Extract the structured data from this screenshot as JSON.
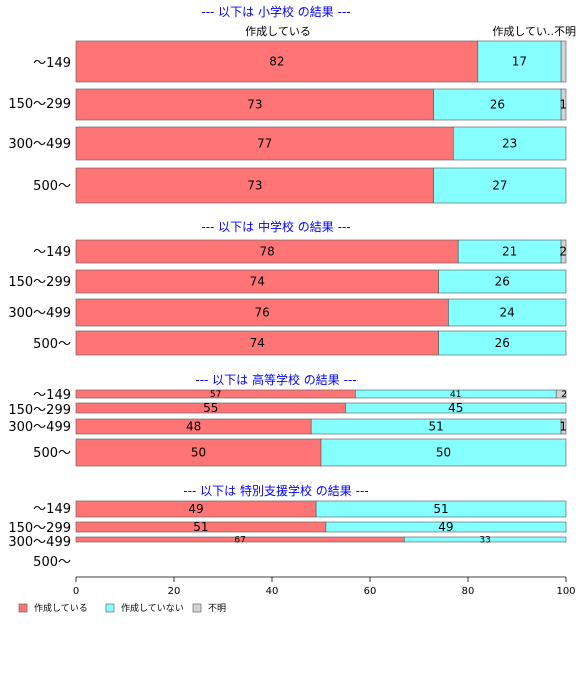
{
  "chart_data": {
    "type": "bar",
    "orientation": "horizontal",
    "stacked": true,
    "xlim": [
      0,
      100
    ],
    "x_ticks": [
      "0",
      "20",
      "40",
      "60",
      "80",
      "100"
    ],
    "colors": {
      "yes": "#ff7575",
      "no": "#85ffff",
      "unknown": "#d3d3d3"
    },
    "legend": {
      "position": "bottom-left",
      "items": [
        {
          "key": "yes",
          "label": "作成している"
        },
        {
          "key": "no",
          "label": "作成していない"
        },
        {
          "key": "unknown",
          "label": "不明"
        }
      ]
    },
    "header_labels": {
      "yes": "作成している",
      "no": "作成してい..不明"
    },
    "sections": [
      {
        "title": "--- 以下は 小学校 の結果 ---",
        "rows": [
          {
            "category": "～149",
            "values": [
              82,
              17,
              1
            ],
            "labels": [
              "82",
              "17",
              ""
            ]
          },
          {
            "category": "150～299",
            "values": [
              73,
              26,
              1
            ],
            "labels": [
              "73",
              "26",
              "1"
            ]
          },
          {
            "category": "300～499",
            "values": [
              77,
              23,
              0
            ],
            "labels": [
              "77",
              "23",
              ""
            ]
          },
          {
            "category": "500～",
            "values": [
              73,
              27,
              0
            ],
            "labels": [
              "73",
              "27",
              ""
            ]
          }
        ]
      },
      {
        "title": "--- 以下は 中学校 の結果 ---",
        "rows": [
          {
            "category": "～149",
            "values": [
              78,
              21,
              2
            ],
            "labels": [
              "78",
              "21",
              "2"
            ]
          },
          {
            "category": "150～299",
            "values": [
              74,
              26,
              0
            ],
            "labels": [
              "74",
              "26",
              ""
            ]
          },
          {
            "category": "300～499",
            "values": [
              76,
              24,
              0
            ],
            "labels": [
              "76",
              "24",
              ""
            ]
          },
          {
            "category": "500～",
            "values": [
              74,
              26,
              0
            ],
            "labels": [
              "74",
              "26",
              ""
            ]
          }
        ]
      },
      {
        "title": "--- 以下は 高等学校 の結果 ---",
        "rows": [
          {
            "category": "～149",
            "values": [
              57,
              41,
              2
            ],
            "labels": [
              "57",
              "41",
              "2"
            ]
          },
          {
            "category": "150～299",
            "values": [
              55,
              45,
              0
            ],
            "labels": [
              "55",
              "45",
              ""
            ]
          },
          {
            "category": "300～499",
            "values": [
              48,
              51,
              1
            ],
            "labels": [
              "48",
              "51",
              "1"
            ]
          },
          {
            "category": "500～",
            "values": [
              50,
              50,
              0
            ],
            "labels": [
              "50",
              "50",
              ""
            ]
          }
        ]
      },
      {
        "title": "--- 以下は 特別支援学校 の結果 ---",
        "rows": [
          {
            "category": "～149",
            "values": [
              49,
              51,
              0
            ],
            "labels": [
              "49",
              "51",
              ""
            ]
          },
          {
            "category": "150～299",
            "values": [
              51,
              49,
              0
            ],
            "labels": [
              "51",
              "49",
              ""
            ]
          },
          {
            "category": "300～499",
            "values": [
              67,
              33,
              0
            ],
            "labels": [
              "67",
              "33",
              ""
            ]
          },
          {
            "category": "500～",
            "values": [
              0,
              0,
              0
            ],
            "labels": [
              "",
              "",
              ""
            ]
          }
        ]
      }
    ]
  }
}
